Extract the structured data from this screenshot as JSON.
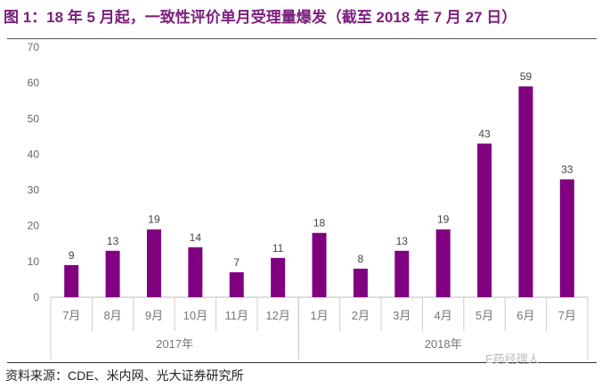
{
  "chart_data": {
    "type": "bar",
    "title": "图 1：18 年 5 月起，一致性评价单月受理量爆发（截至 2018 年 7 月 27 日）",
    "categories": [
      "7月",
      "8月",
      "9月",
      "10月",
      "11月",
      "12月",
      "1月",
      "2月",
      "3月",
      "4月",
      "5月",
      "6月",
      "7月"
    ],
    "groups": [
      {
        "label": "2017年",
        "count": 6
      },
      {
        "label": "2018年",
        "count": 7
      }
    ],
    "values": [
      9,
      13,
      19,
      14,
      7,
      11,
      18,
      8,
      13,
      19,
      43,
      59,
      33
    ],
    "yticks": [
      0,
      10,
      20,
      30,
      40,
      50,
      60,
      70
    ],
    "ylim": [
      0,
      70
    ],
    "xlabel": "",
    "ylabel": "",
    "grid": false,
    "bar_color": "#800080",
    "title_color": "#7b1f7e"
  },
  "source": "资料来源：CDE、米内网、光大证券研究所",
  "watermark": "E药经理人"
}
